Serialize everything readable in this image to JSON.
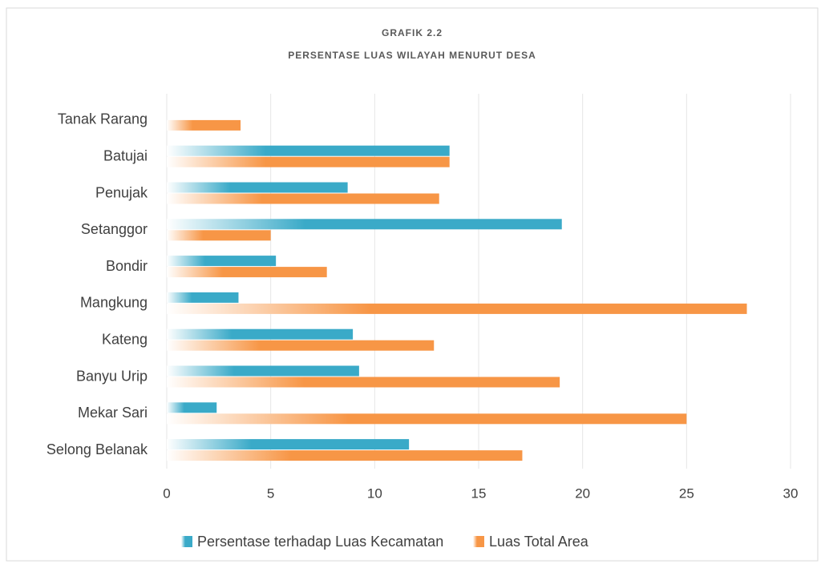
{
  "chart_data": {
    "type": "bar",
    "orientation": "horizontal",
    "title": "GRAFIK 2.2",
    "subtitle": "PERSENTASE LUAS WILAYAH MENURUT DESA",
    "categories": [
      "Tanak Rarang",
      "Batujai",
      "Penujak",
      "Setanggor",
      "Bondir",
      "Mangkung",
      "Kateng",
      "Banyu Urip",
      "Mekar Sari",
      "Selong Belanak"
    ],
    "series": [
      {
        "name": "Persentase terhadap Luas Kecamatan",
        "color": "#3aaac8",
        "values": [
          null,
          13.6,
          8.7,
          19.0,
          5.25,
          3.45,
          8.95,
          9.25,
          2.4,
          11.65
        ]
      },
      {
        "name": "Luas Total Area",
        "color": "#f79646",
        "values": [
          3.55,
          13.6,
          13.1,
          5.0,
          7.7,
          27.9,
          12.85,
          18.9,
          25.0,
          17.1
        ]
      }
    ],
    "xlim": [
      0,
      30
    ],
    "xticks": [
      0,
      5,
      10,
      15,
      20,
      25,
      30
    ],
    "grid": true,
    "legend": "bottom"
  }
}
